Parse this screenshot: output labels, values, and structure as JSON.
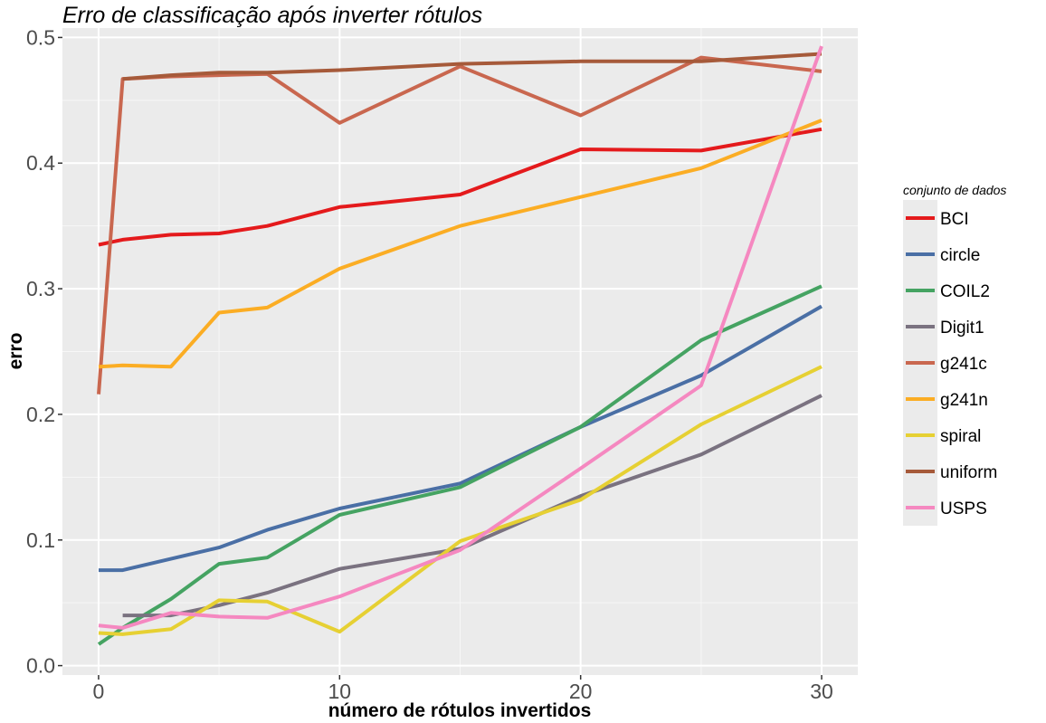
{
  "chart_data": {
    "type": "line",
    "title": "Erro de classificação após inverter rótulos",
    "xlabel": "número de rótulos invertidos",
    "ylabel": "erro",
    "xlim": [
      -1.5,
      31.5
    ],
    "ylim": [
      -0.0075,
      0.5075
    ],
    "x_ticks": [
      0,
      10,
      20,
      30
    ],
    "x_tick_labels": [
      "0",
      "10",
      "20",
      "30"
    ],
    "y_ticks": [
      0.0,
      0.1,
      0.2,
      0.3,
      0.4,
      0.5
    ],
    "y_tick_labels": [
      "0.0",
      "0.1",
      "0.2",
      "0.3",
      "0.4",
      "0.5"
    ],
    "grid": true,
    "legend": {
      "title": "conjunto de dados",
      "position": "right"
    },
    "series": [
      {
        "name": "BCI",
        "color": "#e41a1c",
        "x": [
          0,
          1,
          3,
          5,
          7,
          10,
          15,
          20,
          25,
          30
        ],
        "y": [
          0.335,
          0.339,
          0.343,
          0.344,
          0.35,
          0.365,
          0.375,
          0.411,
          0.41,
          0.427
        ]
      },
      {
        "name": "circle",
        "color": "#4a6fa5",
        "x": [
          0,
          1,
          3,
          5,
          7,
          10,
          15,
          20,
          25,
          30
        ],
        "y": [
          0.076,
          0.076,
          0.085,
          0.094,
          0.108,
          0.125,
          0.145,
          0.19,
          0.231,
          0.286
        ]
      },
      {
        "name": "COIL2",
        "color": "#45a362",
        "x": [
          0,
          1,
          3,
          5,
          7,
          10,
          15,
          20,
          25,
          30
        ],
        "y": [
          0.017,
          0.03,
          0.053,
          0.081,
          0.086,
          0.12,
          0.142,
          0.19,
          0.259,
          0.302
        ]
      },
      {
        "name": "Digit1",
        "color": "#7a7280",
        "x": [
          1,
          3,
          5,
          7,
          10,
          15,
          20,
          25,
          30
        ],
        "y": [
          0.04,
          0.04,
          0.048,
          0.058,
          0.077,
          0.093,
          0.135,
          0.168,
          0.215
        ]
      },
      {
        "name": "g241c",
        "color": "#c9674f",
        "x": [
          0,
          1,
          3,
          5,
          7,
          10,
          15,
          20,
          25,
          30
        ],
        "y": [
          0.216,
          0.467,
          0.469,
          0.47,
          0.471,
          0.432,
          0.477,
          0.438,
          0.484,
          0.473
        ]
      },
      {
        "name": "g241n",
        "color": "#fbad24",
        "x": [
          0,
          1,
          3,
          5,
          7,
          10,
          15,
          20,
          25,
          30
        ],
        "y": [
          0.238,
          0.239,
          0.238,
          0.281,
          0.285,
          0.316,
          0.35,
          0.373,
          0.396,
          0.434
        ]
      },
      {
        "name": "spiral",
        "color": "#e6d033",
        "x": [
          0,
          1,
          3,
          5,
          7,
          10,
          15,
          20,
          25,
          30
        ],
        "y": [
          0.026,
          0.025,
          0.029,
          0.052,
          0.051,
          0.027,
          0.099,
          0.132,
          0.192,
          0.238
        ]
      },
      {
        "name": "uniform",
        "color": "#a65a3a",
        "x": [
          1,
          3,
          5,
          7,
          10,
          15,
          20,
          25,
          30
        ],
        "y": [
          0.467,
          0.47,
          0.472,
          0.472,
          0.474,
          0.479,
          0.481,
          0.481,
          0.487
        ]
      },
      {
        "name": "USPS",
        "color": "#f588c0",
        "x": [
          0,
          1,
          3,
          5,
          7,
          10,
          15,
          20,
          25,
          30
        ],
        "y": [
          0.032,
          0.03,
          0.042,
          0.039,
          0.038,
          0.055,
          0.092,
          0.157,
          0.223,
          0.493
        ]
      }
    ]
  }
}
